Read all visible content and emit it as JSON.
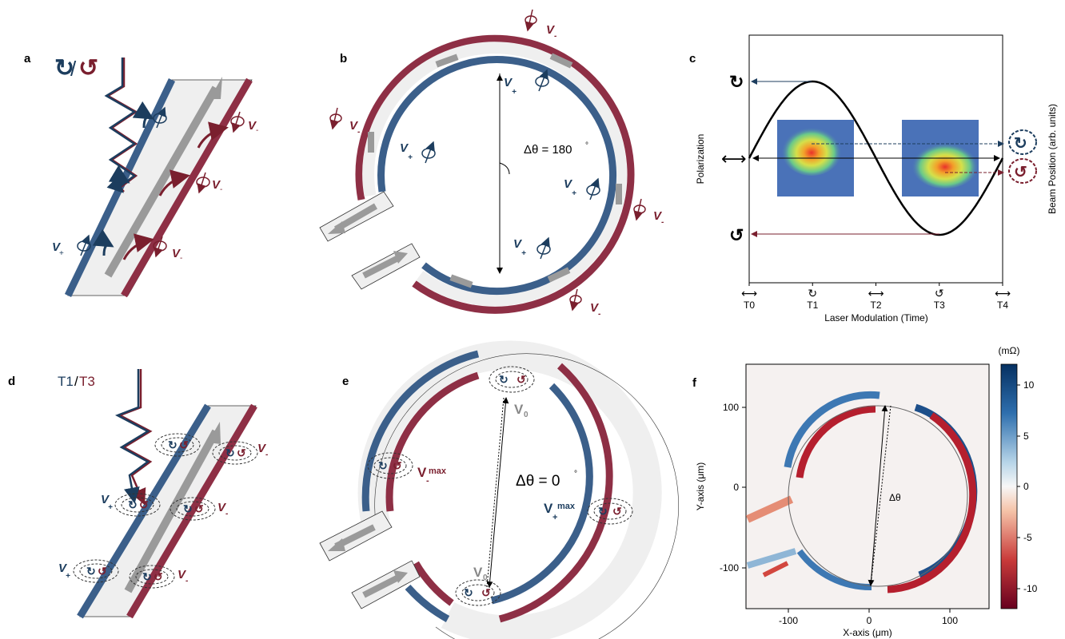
{
  "panel_labels": [
    "a",
    "b",
    "c",
    "d",
    "e",
    "f"
  ],
  "colors": {
    "blue": "#1c3d5e",
    "red": "#7a1f2e",
    "track_blue": "#3b5f8a",
    "track_red": "#8e2f45",
    "track_fill": "#efefef",
    "gray_arrow": "#9a9a9a"
  },
  "panel_a": {
    "header_cw": "↻",
    "header_sep": "/",
    "header_ccw": "↺",
    "v_plus": "V",
    "v_minus": "V",
    "sub_plus": "+",
    "sub_minus": "-"
  },
  "panel_b": {
    "delta_label": "Δθ = 180",
    "deg": "°",
    "v": "V",
    "sub_plus": "+",
    "sub_minus": "-"
  },
  "panel_c": {
    "y_label": "Polarization",
    "right_label": "Beam Position (arb. units)",
    "x_label": "Laser Modulation (Time)",
    "ticks": [
      "T0",
      "T1",
      "T2",
      "T3",
      "T4"
    ],
    "tick_symbols": [
      "⟷",
      "↻",
      "⟷",
      "↺",
      "⟷"
    ],
    "pol_up": "↻",
    "pol_down": "↺",
    "pol_mid": "⟷"
  },
  "panel_d": {
    "legend_t1": "T1",
    "legend_sep": "/",
    "legend_t3": "T3",
    "v": "V",
    "sub_plus": "+",
    "sub_minus": "-"
  },
  "panel_e": {
    "delta_label": "Δθ = 0",
    "deg": "°",
    "v0": "V",
    "v0_sub": "0",
    "vmax": "V",
    "vmax_sup": "max",
    "sub_plus": "+",
    "sub_minus": "-"
  },
  "panel_f": {
    "unit_label": "(mΩ)",
    "x_label": "X-axis (μm)",
    "y_label": "Y-axis (μm)",
    "x_ticks": [
      "-100",
      "0",
      "100"
    ],
    "y_ticks": [
      "100",
      "0",
      "-100"
    ],
    "cbar_ticks": [
      "10",
      "5",
      "0",
      "-5",
      "-10"
    ],
    "delta_label": "Δθ"
  }
}
